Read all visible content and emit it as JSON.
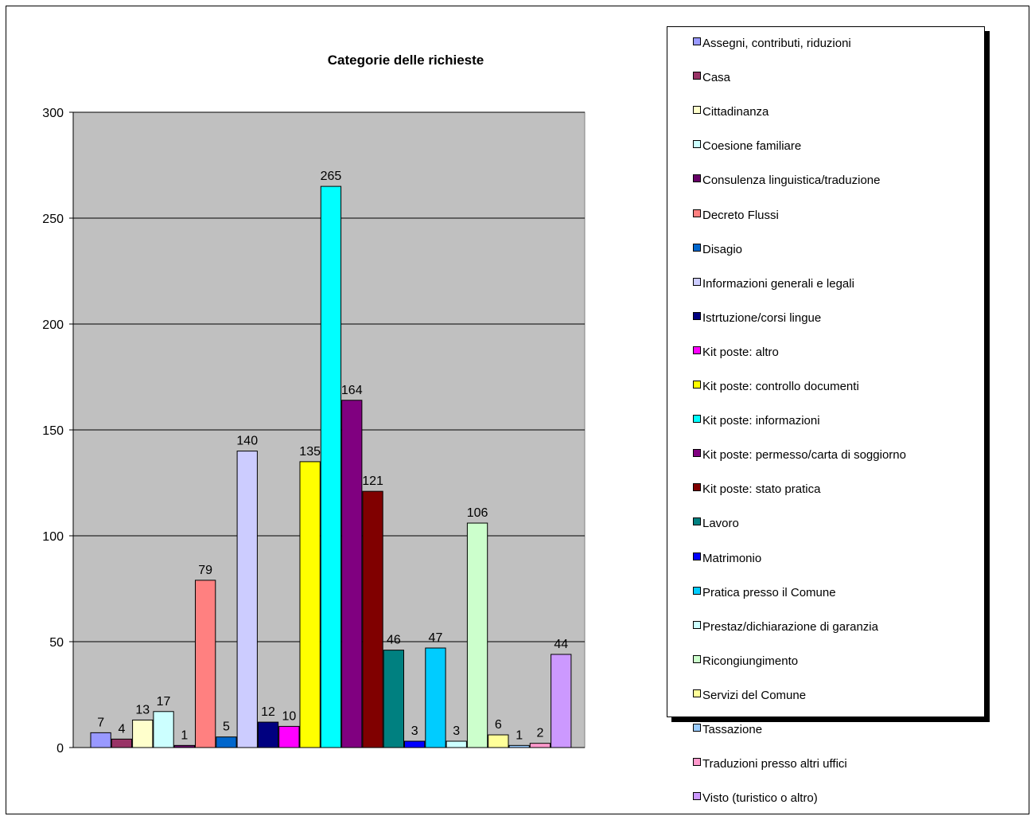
{
  "chart_data": {
    "type": "bar",
    "title": "Categorie delle richieste",
    "xlabel": "",
    "ylabel": "",
    "ylim": [
      0,
      300
    ],
    "yticks": [
      0,
      50,
      100,
      150,
      200,
      250,
      300
    ],
    "grid": true,
    "legend_position": "right",
    "series": [
      {
        "name": "Assegni, contributi, riduzioni",
        "value": 7,
        "color": "#9999FF"
      },
      {
        "name": "Casa",
        "value": 4,
        "color": "#993366"
      },
      {
        "name": "Cittadinanza",
        "value": 13,
        "color": "#FFFFCC"
      },
      {
        "name": "Coesione familiare",
        "value": 17,
        "color": "#CCFFFF"
      },
      {
        "name": "Consulenza linguistica/traduzione",
        "value": 1,
        "color": "#660066"
      },
      {
        "name": "Decreto Flussi",
        "value": 79,
        "color": "#FF8080"
      },
      {
        "name": "Disagio",
        "value": 5,
        "color": "#0066CC"
      },
      {
        "name": "Informazioni generali e legali",
        "value": 140,
        "color": "#CCCCFF"
      },
      {
        "name": "Istrtuzione/corsi lingue",
        "value": 12,
        "color": "#000080"
      },
      {
        "name": "Kit poste: altro",
        "value": 10,
        "color": "#FF00FF"
      },
      {
        "name": "Kit poste: controllo documenti",
        "value": 135,
        "color": "#FFFF00"
      },
      {
        "name": "Kit poste: informazioni",
        "value": 265,
        "color": "#00FFFF"
      },
      {
        "name": "Kit poste: permesso/carta di soggiorno",
        "value": 164,
        "color": "#800080"
      },
      {
        "name": "Kit poste: stato pratica",
        "value": 121,
        "color": "#800000"
      },
      {
        "name": "Lavoro",
        "value": 46,
        "color": "#008080"
      },
      {
        "name": "Matrimonio",
        "value": 3,
        "color": "#0000FF"
      },
      {
        "name": "Pratica presso il Comune",
        "value": 47,
        "color": "#00CCFF"
      },
      {
        "name": "Prestaz/dichiarazione di garanzia",
        "value": 3,
        "color": "#CCFFFF"
      },
      {
        "name": "Ricongiungimento",
        "value": 106,
        "color": "#CCFFCC"
      },
      {
        "name": "Servizi del Comune",
        "value": 6,
        "color": "#FFFF99"
      },
      {
        "name": "Tassazione",
        "value": 1,
        "color": "#99CCFF"
      },
      {
        "name": "Traduzioni presso altri uffici",
        "value": 2,
        "color": "#FF99CC"
      },
      {
        "name": "Visto (turistico o altro)",
        "value": 44,
        "color": "#CC99FF"
      }
    ]
  }
}
